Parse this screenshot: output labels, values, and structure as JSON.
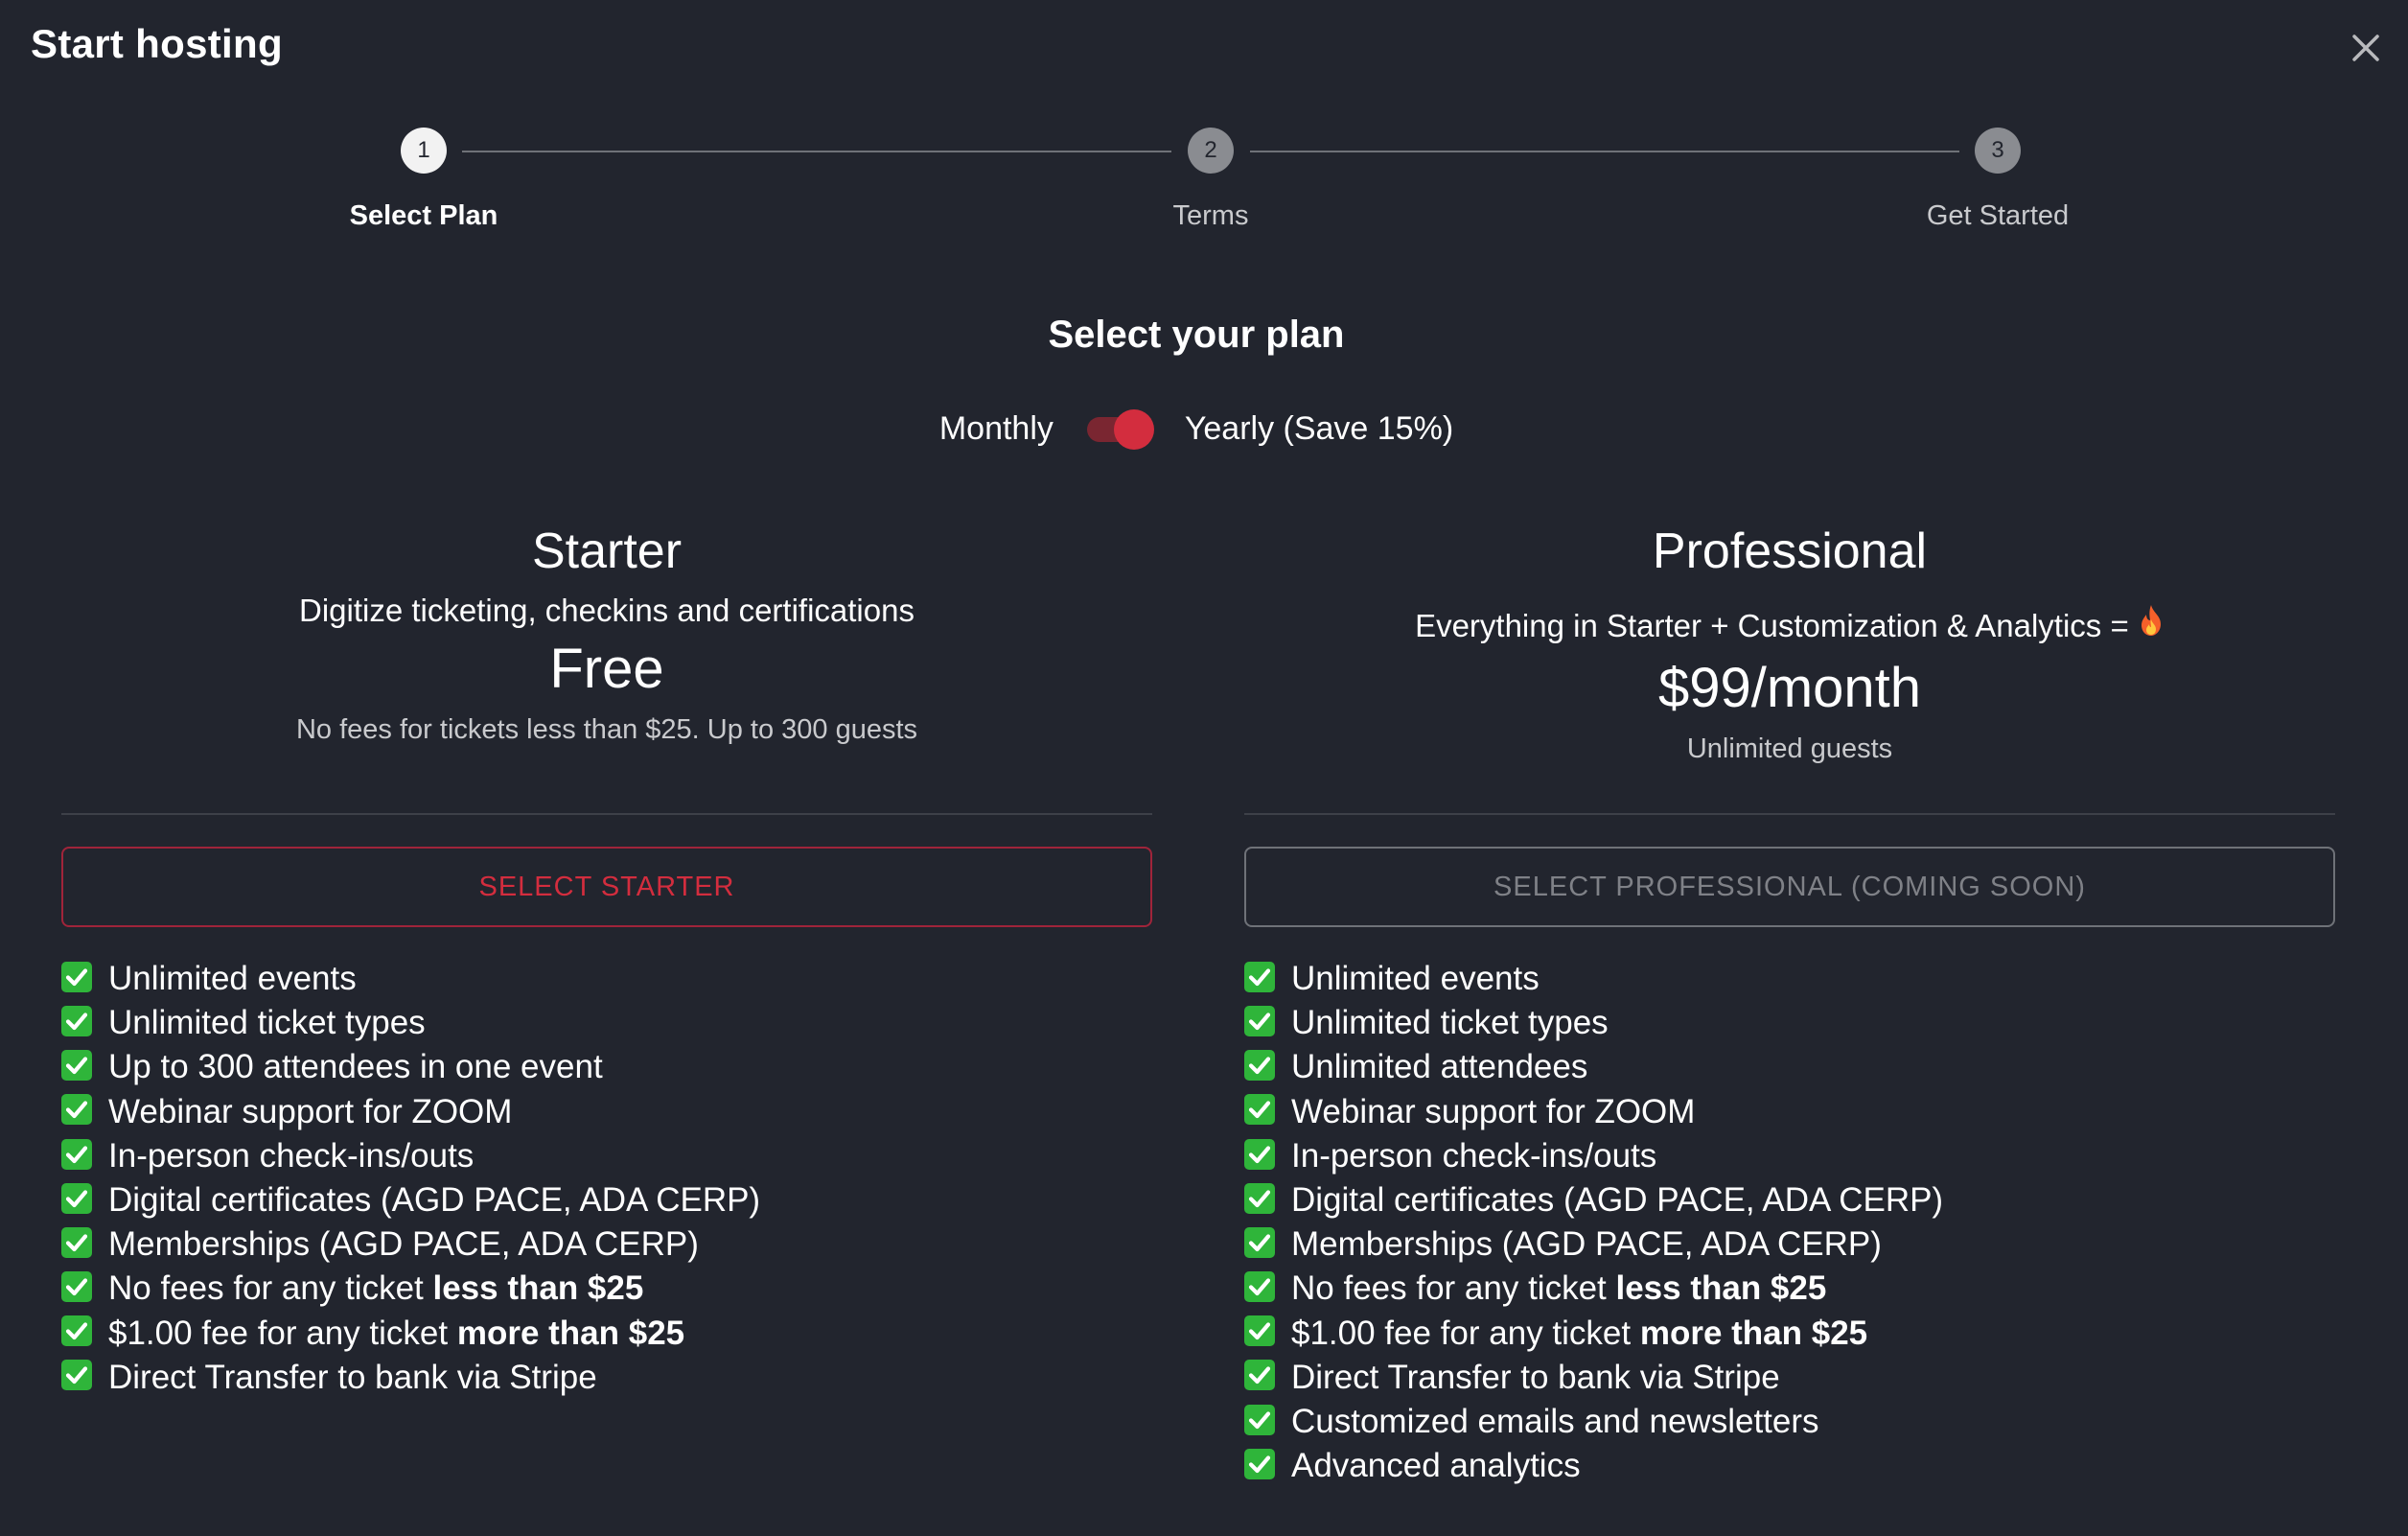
{
  "dialog": {
    "title": "Start hosting",
    "close_icon": "close-icon"
  },
  "stepper": {
    "steps": [
      {
        "number": "1",
        "label": "Select Plan",
        "active": true
      },
      {
        "number": "2",
        "label": "Terms",
        "active": false
      },
      {
        "number": "3",
        "label": "Get Started",
        "active": false
      }
    ]
  },
  "plan_selector": {
    "heading": "Select your plan",
    "toggle_left_label": "Monthly",
    "toggle_right_label": "Yearly (Save 15%)",
    "toggle_state": "yearly",
    "accent_color": "#d32d3e"
  },
  "plans": {
    "starter": {
      "name": "Starter",
      "description": "Digitize ticketing, checkins and certifications",
      "price": "Free",
      "note": "No fees for tickets less than $25. Up to 300 guests",
      "button_label": "SELECT STARTER",
      "features": [
        {
          "text": "Unlimited events"
        },
        {
          "text": "Unlimited ticket types"
        },
        {
          "text": "Up to 300 attendees in one event"
        },
        {
          "text": "Webinar support for ZOOM"
        },
        {
          "text": "In-person check-ins/outs"
        },
        {
          "text": "Digital certificates (AGD PACE, ADA CERP)"
        },
        {
          "text": "Memberships (AGD PACE, ADA CERP)"
        },
        {
          "text": "No fees for any ticket ",
          "bold": "less than $25"
        },
        {
          "text": "$1.00 fee for any ticket ",
          "bold": "more than $25"
        },
        {
          "text": "Direct Transfer to bank via Stripe"
        }
      ]
    },
    "professional": {
      "name": "Professional",
      "description": "Everything in Starter + Customization & Analytics =",
      "description_icon": "fire-icon",
      "price": "$99/month",
      "note": "Unlimited guests",
      "button_label": "SELECT PROFESSIONAL (COMING SOON)",
      "button_disabled": true,
      "features": [
        {
          "text": "Unlimited events"
        },
        {
          "text": "Unlimited ticket types"
        },
        {
          "text": "Unlimited attendees"
        },
        {
          "text": "Webinar support for ZOOM"
        },
        {
          "text": "In-person check-ins/outs"
        },
        {
          "text": "Digital certificates (AGD PACE, ADA CERP)"
        },
        {
          "text": "Memberships (AGD PACE, ADA CERP)"
        },
        {
          "text": "No fees for any ticket ",
          "bold": "less than $25"
        },
        {
          "text": "$1.00 fee for any ticket ",
          "bold": "more than $25"
        },
        {
          "text": "Direct Transfer to bank via Stripe"
        },
        {
          "text": "Customized emails and newsletters"
        },
        {
          "text": "Advanced analytics"
        }
      ]
    }
  },
  "feature_check_icon": "check-mark-icon",
  "check_color": "#2fb53a"
}
